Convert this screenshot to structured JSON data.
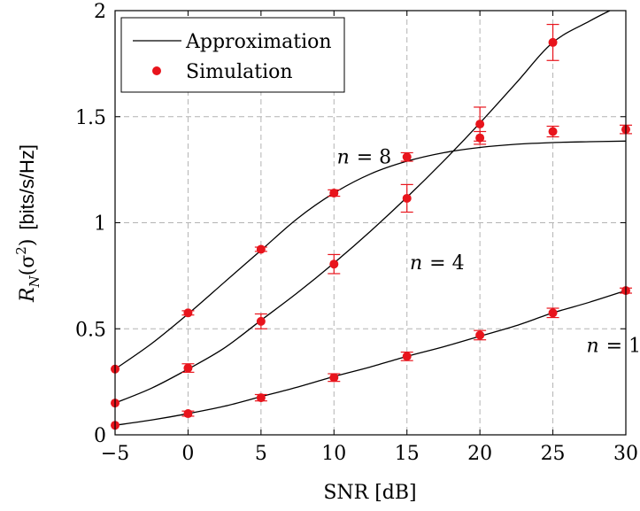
{
  "chart_data": {
    "type": "scatter",
    "xlabel": "SNR [dB]",
    "ylabel_main": "R",
    "ylabel_sub": "N",
    "ylabel_arg": "(σ",
    "ylabel_sup": "2",
    "ylabel_close": ")",
    "ylabel_unit": "[bits/s/Hz]",
    "xlim": [
      -5,
      30
    ],
    "ylim": [
      0,
      2
    ],
    "xticks": [
      -5,
      0,
      5,
      10,
      15,
      20,
      25,
      30
    ],
    "xtick_labels": [
      "−5",
      "0",
      "5",
      "10",
      "15",
      "20",
      "25",
      "30"
    ],
    "yticks": [
      0,
      0.5,
      1,
      1.5,
      2
    ],
    "ytick_labels": [
      "0",
      "0.5",
      "1",
      "1.5",
      "2"
    ],
    "grid": true,
    "legend_position": "top-left",
    "legend": [
      {
        "label": "Approximation",
        "marker": "line"
      },
      {
        "label": "Simulation",
        "marker": "dot"
      }
    ],
    "colors": {
      "approximation": "#000000",
      "simulation": "#e8141c",
      "grid": "#b3b3b3"
    },
    "annotations": [
      {
        "text_var": "n",
        "text_eq": "= 8",
        "x": 10.2,
        "y": 1.28
      },
      {
        "text_var": "n",
        "text_eq": "= 4",
        "x": 15.2,
        "y": 0.78
      },
      {
        "text_var": "n",
        "text_eq": "= 1",
        "x": 27.3,
        "y": 0.39
      }
    ],
    "series": [
      {
        "id": "n8",
        "approximation": {
          "x": [
            -5,
            -2.5,
            0,
            2.5,
            5,
            7.5,
            10,
            12.5,
            15,
            17.5,
            20,
            22.5,
            25,
            27.5,
            30
          ],
          "y": [
            0.31,
            0.43,
            0.57,
            0.72,
            0.87,
            1.02,
            1.14,
            1.23,
            1.29,
            1.33,
            1.355,
            1.37,
            1.378,
            1.382,
            1.385
          ]
        },
        "simulation": {
          "x": [
            -5,
            0,
            5,
            10,
            15,
            20,
            25,
            30
          ],
          "y": [
            0.31,
            0.575,
            0.875,
            1.14,
            1.31,
            1.4,
            1.43,
            1.44
          ],
          "err": [
            0.0,
            0.01,
            0.01,
            0.015,
            0.02,
            0.03,
            0.025,
            0.02
          ]
        }
      },
      {
        "id": "n4",
        "approximation": {
          "x": [
            -5,
            -2.5,
            0,
            2.5,
            5,
            7.5,
            10,
            12.5,
            15,
            17.5,
            20,
            22.5,
            25,
            27.5,
            28.9
          ],
          "y": [
            0.15,
            0.22,
            0.31,
            0.41,
            0.54,
            0.67,
            0.81,
            0.96,
            1.12,
            1.29,
            1.47,
            1.66,
            1.85,
            1.95,
            2.0
          ]
        },
        "simulation": {
          "x": [
            -5,
            0,
            5,
            10,
            15,
            20,
            25
          ],
          "y": [
            0.15,
            0.315,
            0.535,
            0.805,
            1.115,
            1.465,
            1.85
          ],
          "err": [
            0.0,
            0.02,
            0.035,
            0.045,
            0.065,
            0.08,
            0.085
          ]
        }
      },
      {
        "id": "n1",
        "approximation": {
          "x": [
            -5,
            -2.5,
            0,
            2.5,
            5,
            7.5,
            10,
            12.5,
            15,
            17.5,
            20,
            22.5,
            25,
            27.5,
            30
          ],
          "y": [
            0.045,
            0.07,
            0.1,
            0.135,
            0.18,
            0.225,
            0.275,
            0.32,
            0.37,
            0.415,
            0.465,
            0.515,
            0.575,
            0.625,
            0.68
          ]
        },
        "simulation": {
          "x": [
            -5,
            0,
            5,
            10,
            15,
            20,
            25,
            30
          ],
          "y": [
            0.045,
            0.1,
            0.175,
            0.27,
            0.37,
            0.47,
            0.575,
            0.68
          ],
          "err": [
            0.0,
            0.012,
            0.015,
            0.018,
            0.02,
            0.022,
            0.022,
            0.012
          ]
        }
      }
    ]
  }
}
